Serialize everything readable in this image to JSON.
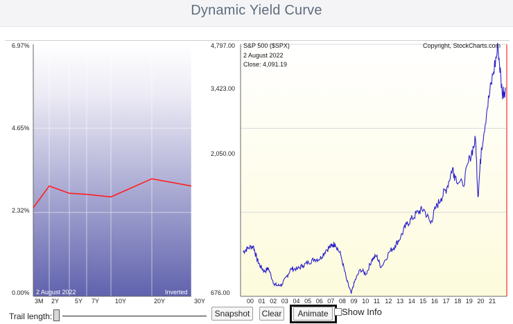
{
  "page": {
    "title": "Dynamic Yield Curve"
  },
  "yield_panel": {
    "y_ticks": [
      "6.97%",
      "4.65%",
      "2.32%",
      "0.00%"
    ],
    "x_ticks": [
      "3M",
      "2Y",
      "5Y",
      "7Y",
      "10Y",
      "20Y",
      "30Y"
    ],
    "date_label": "2  August 2022",
    "status_label": "Inverted",
    "curve_color": "#ff1f1f",
    "gradient_top": "#ffffff",
    "gradient_bottom": "#6062ad"
  },
  "spx_panel": {
    "y_ticks": [
      "4,797.00",
      "3,423.00",
      "2,050.00",
      "676.00"
    ],
    "x_ticks": [
      "00",
      "01",
      "02",
      "03",
      "04",
      "05",
      "06",
      "07",
      "08",
      "09",
      "10",
      "11",
      "12",
      "13",
      "14",
      "15",
      "16",
      "17",
      "18",
      "19",
      "20",
      "21"
    ],
    "symbol_label": "S&P 500 ($SPX)",
    "copyright": "Copyright, StockCharts.com",
    "date_label": "2  August 2022",
    "close_label": "Close: 4,091.19",
    "line_color": "#2a20c8",
    "marker_color": "#ff2a2a"
  },
  "controls": {
    "trail_length_label": "Trail length:",
    "trail_length_value": 0,
    "snapshot_label": "Snapshot",
    "clear_label": "Clear",
    "animate_label": "Animate",
    "show_info_label": "Show Info",
    "show_info_checked": false
  },
  "chart_data": [
    {
      "type": "line",
      "title": "",
      "categories": [
        "3M",
        "2Y",
        "5Y",
        "7Y",
        "10Y",
        "20Y",
        "30Y"
      ],
      "series": [
        {
          "values": [
            2.45,
            3.05,
            2.85,
            2.82,
            2.75,
            3.25,
            3.05
          ]
        }
      ],
      "ylim": [
        0,
        6.97
      ],
      "ytick_values": [
        0,
        2.32,
        4.65,
        6.97
      ],
      "grid": true
    },
    {
      "type": "line",
      "title": "S&P 500 ($SPX)",
      "x": [
        1999.8,
        2000.2,
        2000.7,
        2001.0,
        2001.3,
        2001.7,
        2002.0,
        2002.5,
        2002.8,
        2003.2,
        2003.6,
        2004.0,
        2004.5,
        2005.0,
        2005.5,
        2006.0,
        2006.5,
        2007.0,
        2007.5,
        2007.8,
        2008.3,
        2008.8,
        2009.2,
        2009.5,
        2010.0,
        2010.5,
        2011.0,
        2011.4,
        2011.8,
        2012.5,
        2013.0,
        2013.5,
        2014.0,
        2014.5,
        2015.0,
        2015.5,
        2016.1,
        2016.5,
        2017.0,
        2017.5,
        2018.0,
        2018.2,
        2018.9,
        2019.5,
        2020.0,
        2020.2,
        2020.5,
        2021.0,
        2021.5,
        2021.95,
        2022.3,
        2022.6
      ],
      "series": [
        {
          "values": [
            1400,
            1460,
            1500,
            1300,
            1170,
            1080,
            1140,
            880,
            850,
            870,
            1000,
            1130,
            1120,
            1180,
            1230,
            1280,
            1290,
            1430,
            1500,
            1540,
            1350,
            950,
            720,
            920,
            1115,
            1040,
            1280,
            1340,
            1150,
            1400,
            1500,
            1650,
            1850,
            1950,
            2060,
            2100,
            1870,
            2110,
            2280,
            2450,
            2780,
            2640,
            2480,
            2950,
            3230,
            2300,
            3100,
            3750,
            4300,
            4750,
            4000,
            4091
          ]
        }
      ],
      "ylim": [
        676,
        4797
      ],
      "ytick_values": [
        676,
        2050,
        3423,
        4797
      ],
      "xlim": [
        1999.6,
        2022.7
      ],
      "grid": true
    }
  ]
}
